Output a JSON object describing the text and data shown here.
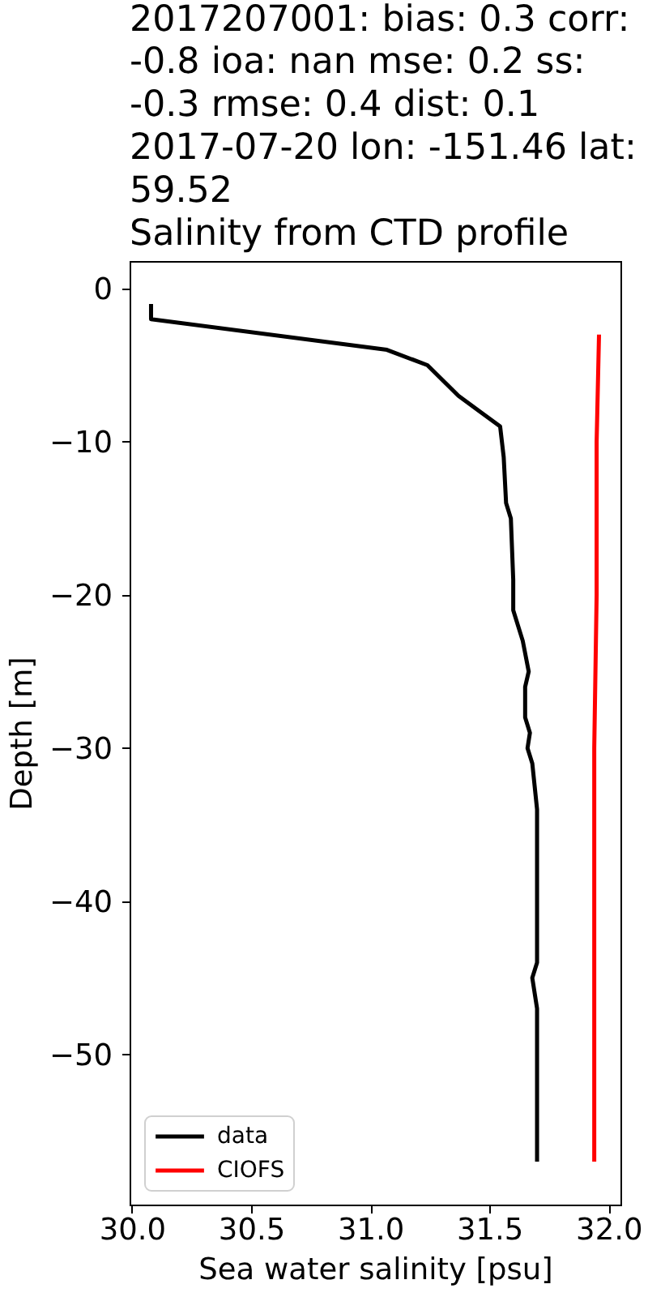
{
  "chart_data": {
    "type": "line",
    "title": "2017207001: bias: 0.3  corr:\n-0.8  ioa: nan  mse: 0.2  ss:\n-0.3  rmse: 0.4  dist: 0.1\n2017-07-20 lon: -151.46 lat:\n59.52\nSalinity from CTD profile",
    "xlabel": "Sea water salinity [psu]",
    "ylabel": "Depth [m]",
    "series": [
      {
        "name": "data",
        "color": "#000000",
        "x": [
          30.08,
          30.08,
          31.07,
          31.24,
          31.37,
          31.545,
          31.56,
          31.57,
          31.59,
          31.6,
          31.6,
          31.64,
          31.665,
          31.65,
          31.65,
          31.67,
          31.66,
          31.68,
          31.7,
          31.7,
          31.7,
          31.68,
          31.7,
          31.7
        ],
        "values": [
          -1,
          -2,
          -4,
          -5,
          -7,
          -9,
          -11,
          -14,
          -15,
          -19,
          -21,
          -23,
          -25,
          -26,
          -28,
          -29,
          -30,
          -31,
          -34,
          -40,
          -44,
          -45,
          -47,
          -57
        ]
      },
      {
        "name": "CIOFS",
        "color": "#ff0000",
        "x": [
          31.96,
          31.95,
          31.95,
          31.94,
          31.94
        ],
        "values": [
          -3,
          -10,
          -20,
          -30,
          -57
        ]
      }
    ],
    "xlim": [
      29.99,
      32.05
    ],
    "ylim": [
      -59.8,
      1.8
    ],
    "xticks": [
      {
        "value": 30,
        "label": "30.0"
      },
      {
        "value": 30.5,
        "label": "30.5"
      },
      {
        "value": 31,
        "label": "31.0"
      },
      {
        "value": 31.5,
        "label": "31.5"
      },
      {
        "value": 32,
        "label": "32.0"
      }
    ],
    "yticks": [
      0,
      -10,
      -20,
      -30,
      -40,
      -50
    ],
    "grid": false,
    "legend": "bottom left",
    "line_style": "solid"
  }
}
